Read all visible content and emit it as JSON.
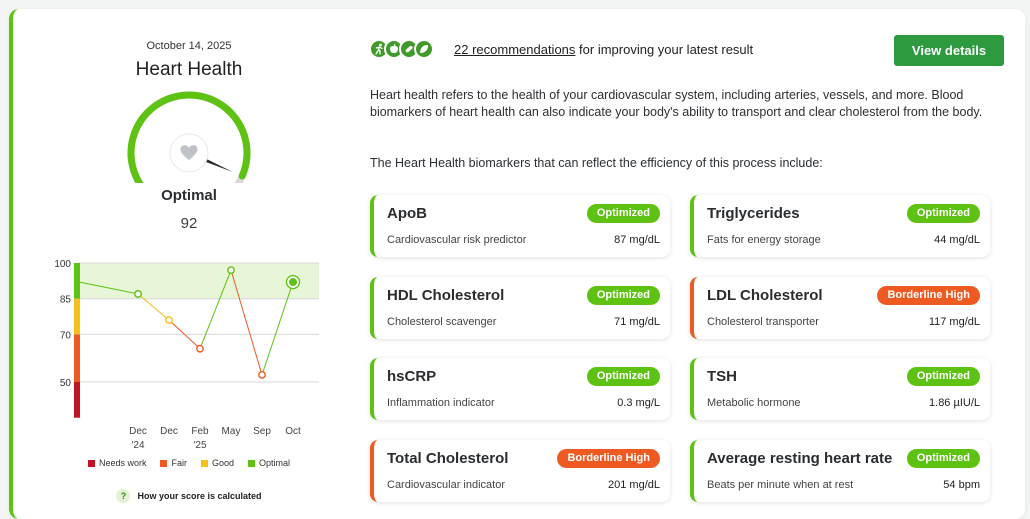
{
  "summary": {
    "date": "October 14, 2025",
    "title": "Heart Health",
    "status": "Optimal",
    "score": "92",
    "how_score": "How your score is calculated",
    "help_glyph": "?"
  },
  "recommendations": {
    "icons": [
      "runner-icon",
      "apple-icon",
      "pill-icon",
      "leaf-icon"
    ],
    "count_link": "22 recommendations",
    "suffix": "for improving your latest result",
    "button": "View details"
  },
  "description": "Heart health refers to the health of your cardiovascular system, including arteries, vessels, and more. Blood biomarkers of heart health can also indicate your body's ability to transport and clear cholesterol from the body.",
  "intro": "The Heart Health biomarkers that can reflect the efficiency of this process include:",
  "biomarkers": [
    {
      "name": "ApoB",
      "badge": "Optimized",
      "sub": "Cardiovascular risk predictor",
      "value": "87 mg/dL",
      "level": "ok"
    },
    {
      "name": "Triglycerides",
      "badge": "Optimized",
      "sub": "Fats for energy storage",
      "value": "44 mg/dL",
      "level": "ok"
    },
    {
      "name": "HDL Cholesterol",
      "badge": "Optimized",
      "sub": "Cholesterol scavenger",
      "value": "71 mg/dL",
      "level": "ok"
    },
    {
      "name": "LDL Cholesterol",
      "badge": "Borderline High",
      "sub": "Cholesterol transporter",
      "value": "117 mg/dL",
      "level": "warn"
    },
    {
      "name": "hsCRP",
      "badge": "Optimized",
      "sub": "Inflammation indicator",
      "value": "0.3 mg/L",
      "level": "ok"
    },
    {
      "name": "TSH",
      "badge": "Optimized",
      "sub": "Metabolic hormone",
      "value": "1.86 µIU/L",
      "level": "ok"
    },
    {
      "name": "Total Cholesterol",
      "badge": "Borderline High",
      "sub": "Cardiovascular indicator",
      "value": "201 mg/dL",
      "level": "warn"
    },
    {
      "name": "Average resting heart rate",
      "badge": "Optimized",
      "sub": "Beats per minute when at rest",
      "value": "54 bpm",
      "level": "ok"
    }
  ],
  "colors": {
    "optimal": "#5ec212",
    "good": "#f6c01a",
    "fair": "#ee5a22",
    "needs_work": "#c1121f",
    "brand_button": "#2e9a3f"
  },
  "chart_data": {
    "type": "line",
    "x": [
      "Dec '24",
      "Dec",
      "Feb '25",
      "May",
      "Sep",
      "Oct"
    ],
    "x_labels": [
      [
        "Dec",
        "'24"
      ],
      [
        "Dec",
        ""
      ],
      [
        "Feb",
        "'25"
      ],
      [
        "May",
        ""
      ],
      [
        "Sep",
        ""
      ],
      [
        "Oct",
        ""
      ]
    ],
    "series": [
      {
        "values": [
          87,
          76,
          64,
          97,
          53,
          92
        ]
      }
    ],
    "yticks": [
      100,
      85,
      70,
      50
    ],
    "ylim": [
      35,
      100
    ],
    "optimal_band": [
      85,
      100
    ],
    "zones": [
      {
        "label": "Needs work",
        "from": 35,
        "to": 50,
        "color": "#c1121f"
      },
      {
        "label": "Fair",
        "from": 50,
        "to": 70,
        "color": "#ee5a22"
      },
      {
        "label": "Good",
        "from": 70,
        "to": 85,
        "color": "#f6c01a"
      },
      {
        "label": "Optimal",
        "from": 85,
        "to": 100,
        "color": "#5ec212"
      }
    ],
    "start_value": 92,
    "grid": true
  },
  "gauge": {
    "score_fraction": 0.92
  }
}
